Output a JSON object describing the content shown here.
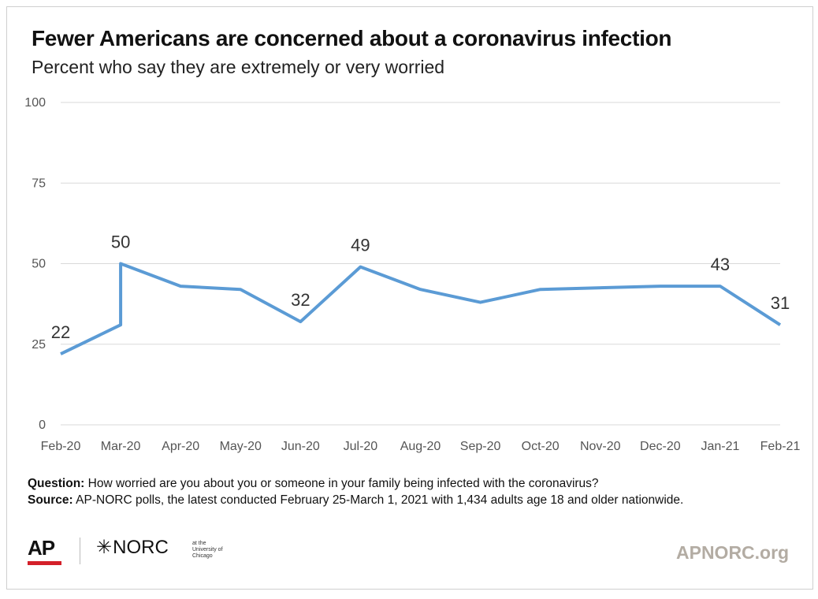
{
  "header": {
    "title": "Fewer Americans are concerned about a coronavirus infection",
    "subtitle": "Percent who say they are extremely or very worried"
  },
  "chart_data": {
    "type": "line",
    "title": "Fewer Americans are concerned about a coronavirus infection",
    "subtitle": "Percent who say they are extremely or very worried",
    "xlabel": "",
    "ylabel": "",
    "x_ticks": [
      "Feb-20",
      "Mar-20",
      "Apr-20",
      "May-20",
      "Jun-20",
      "Jul-20",
      "Aug-20",
      "Sep-20",
      "Oct-20",
      "Nov-20",
      "Dec-20",
      "Jan-21",
      "Feb-21"
    ],
    "y_ticks": [
      0,
      25,
      50,
      75,
      100
    ],
    "ylim": [
      0,
      100
    ],
    "grid": true,
    "color": "#5b9bd5",
    "series": [
      {
        "points": [
          {
            "x": "Feb-20",
            "y": 22
          },
          {
            "x": "Mar-20",
            "y": 31
          },
          {
            "x": "Mar-20",
            "y": 50
          },
          {
            "x": "Apr-20",
            "y": 43
          },
          {
            "x": "May-20",
            "y": 42
          },
          {
            "x": "Jun-20",
            "y": 32
          },
          {
            "x": "Jul-20",
            "y": 49
          },
          {
            "x": "Aug-20",
            "y": 42
          },
          {
            "x": "Sep-20",
            "y": 38
          },
          {
            "x": "Oct-20",
            "y": 42
          },
          {
            "x": "Dec-20",
            "y": 43
          },
          {
            "x": "Jan-21",
            "y": 43
          },
          {
            "x": "Feb-21",
            "y": 31
          }
        ]
      }
    ],
    "data_labels": [
      {
        "x": "Feb-20",
        "y": 22,
        "text": "22"
      },
      {
        "x": "Mar-20",
        "y": 50,
        "text": "50"
      },
      {
        "x": "Jun-20",
        "y": 32,
        "text": "32"
      },
      {
        "x": "Jul-20",
        "y": 49,
        "text": "49"
      },
      {
        "x": "Jan-21",
        "y": 43,
        "text": "43"
      },
      {
        "x": "Feb-21",
        "y": 31,
        "text": "31"
      }
    ]
  },
  "notes": {
    "question_label": "Question:",
    "question_text": " How worried are you about you or someone in your family being infected with the coronavirus?",
    "source_label": "Source:",
    "source_text": "  AP-NORC polls, the latest conducted February 25-March 1, 2021 with 1,434 adults age 18 and older nationwide."
  },
  "footer": {
    "ap_logo": "AP",
    "norc_logo": "NORC",
    "norc_small": "at the University of Chicago",
    "site": "APNORC.org"
  }
}
